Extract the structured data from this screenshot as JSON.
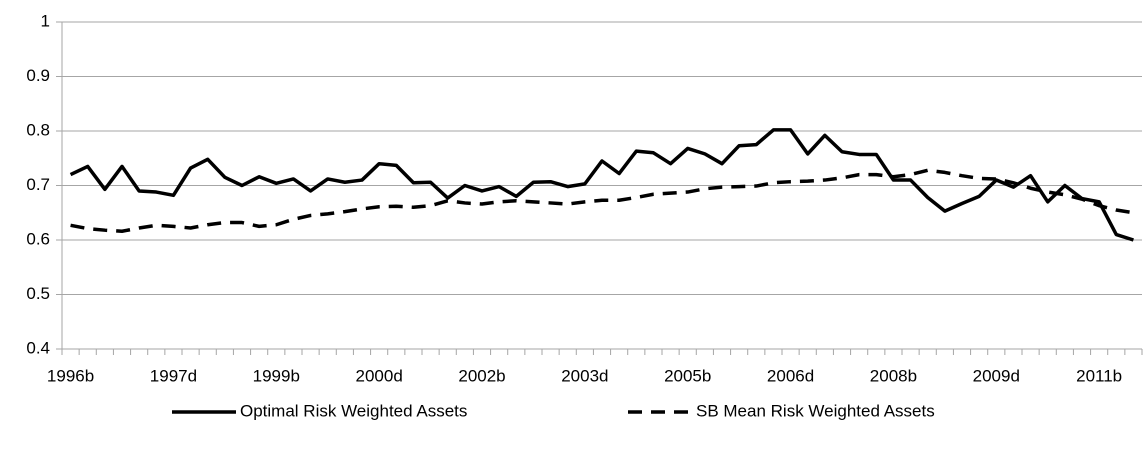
{
  "chart_data": {
    "type": "line",
    "categories": [
      "1996b",
      null,
      null,
      null,
      null,
      null,
      "1997d",
      null,
      null,
      null,
      null,
      null,
      "1999b",
      null,
      null,
      null,
      null,
      null,
      "2000d",
      null,
      null,
      null,
      null,
      null,
      "2002b",
      null,
      null,
      null,
      null,
      null,
      "2003d",
      null,
      null,
      null,
      null,
      null,
      "2005b",
      null,
      null,
      null,
      null,
      null,
      "2006d",
      null,
      null,
      null,
      null,
      null,
      "2008b",
      null,
      null,
      null,
      null,
      null,
      "2009d",
      null,
      null,
      null,
      null,
      null,
      "2011b",
      null,
      null
    ],
    "series": [
      {
        "name": "Optimal Risk Weighted Assets",
        "color": "#000000",
        "dash": "solid",
        "values": [
          0.72,
          0.735,
          0.693,
          0.735,
          0.69,
          0.688,
          0.682,
          0.732,
          0.748,
          0.715,
          0.7,
          0.716,
          0.704,
          0.712,
          0.69,
          0.712,
          0.706,
          0.71,
          0.74,
          0.737,
          0.705,
          0.706,
          0.677,
          0.7,
          0.69,
          0.698,
          0.68,
          0.706,
          0.707,
          0.698,
          0.703,
          0.745,
          0.722,
          0.763,
          0.76,
          0.74,
          0.768,
          0.758,
          0.74,
          0.773,
          0.775,
          0.802,
          0.802,
          0.758,
          0.792,
          0.762,
          0.757,
          0.757,
          0.71,
          0.71,
          0.678,
          0.653,
          0.667,
          0.68,
          0.71,
          0.697,
          0.718,
          0.67,
          0.7,
          0.676,
          0.67,
          0.61,
          0.6
        ]
      },
      {
        "name": "SB Mean Risk Weighted Assets",
        "color": "#000000",
        "dash": "dashed",
        "values": [
          0.627,
          0.621,
          0.618,
          0.616,
          0.622,
          0.627,
          0.625,
          0.622,
          0.628,
          0.632,
          0.632,
          0.625,
          0.628,
          0.638,
          0.645,
          0.648,
          0.652,
          0.657,
          0.661,
          0.662,
          0.66,
          0.663,
          0.672,
          0.668,
          0.666,
          0.67,
          0.672,
          0.67,
          0.668,
          0.666,
          0.67,
          0.673,
          0.673,
          0.678,
          0.684,
          0.686,
          0.688,
          0.694,
          0.697,
          0.698,
          0.699,
          0.705,
          0.707,
          0.708,
          0.71,
          0.714,
          0.72,
          0.72,
          0.716,
          0.72,
          0.728,
          0.724,
          0.718,
          0.713,
          0.712,
          0.705,
          0.695,
          0.688,
          0.683,
          0.675,
          0.663,
          0.655,
          0.65
        ]
      }
    ],
    "ylim": [
      0.4,
      1
    ],
    "yticks": [
      0.4,
      0.5,
      0.6,
      0.7,
      0.8,
      0.9,
      1
    ],
    "grid": true,
    "legend": "bottom"
  }
}
